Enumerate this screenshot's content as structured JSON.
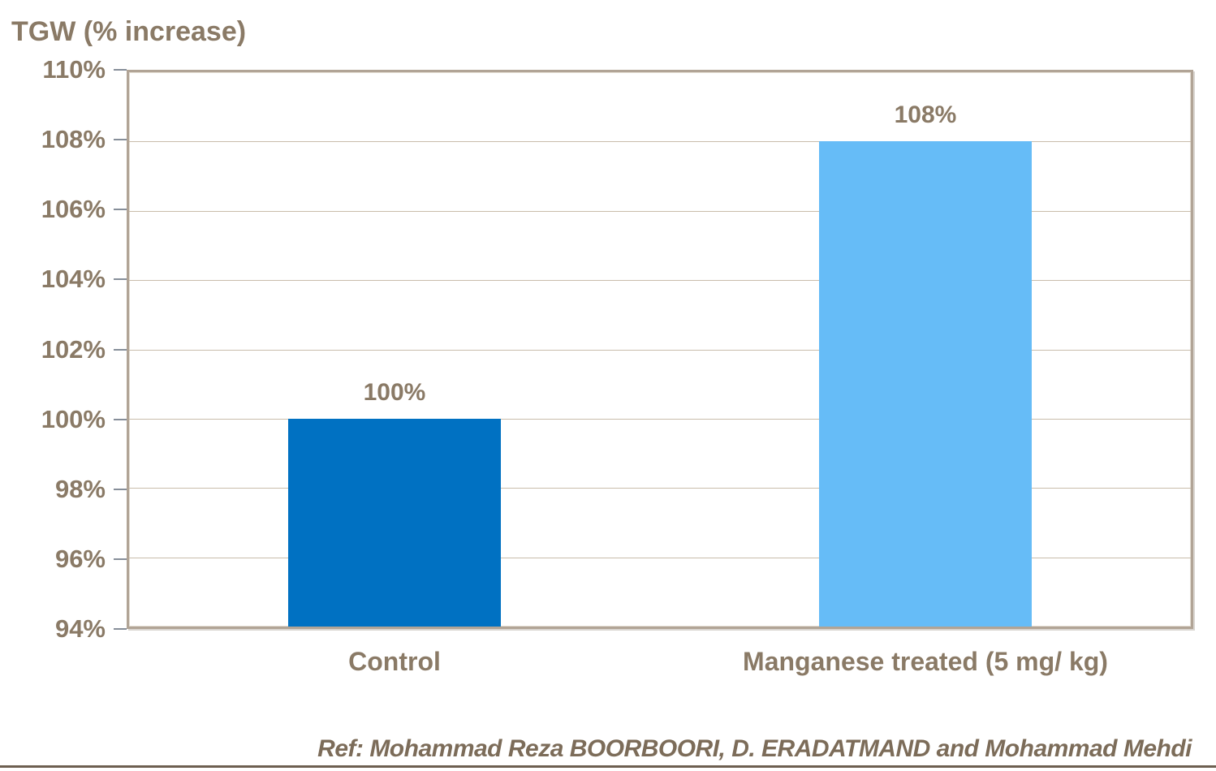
{
  "chart_data": {
    "type": "bar",
    "title": "TGW (% increase)",
    "categories": [
      "Control",
      "Manganese treated (5 mg/ kg)"
    ],
    "values": [
      100,
      108
    ],
    "value_labels": [
      "100%",
      "108%"
    ],
    "series_unit": "%",
    "ylim": [
      94,
      110
    ],
    "ytick_step": 2,
    "ytick_labels": [
      "94%",
      "96%",
      "98%",
      "100%",
      "102%",
      "104%",
      "106%",
      "108%",
      "110%"
    ],
    "grid": true,
    "legend": "none",
    "bar_colors": [
      "#0071c2",
      "#66bcf7"
    ],
    "bar_width_fraction": 0.4
  },
  "colors": {
    "background": "#ffffff",
    "label_text": "#8a7a66",
    "ref_text": "#7c6c59",
    "plot_border": "#b1a496",
    "gridline": "#c9bcab",
    "tick_mark": "#868e99",
    "bottom_line": "#6d5f50"
  },
  "footer": {
    "ref_text": "Ref: Mohammad Reza BOORBOORI, D. ERADATMAND and Mohammad Mehdi"
  }
}
